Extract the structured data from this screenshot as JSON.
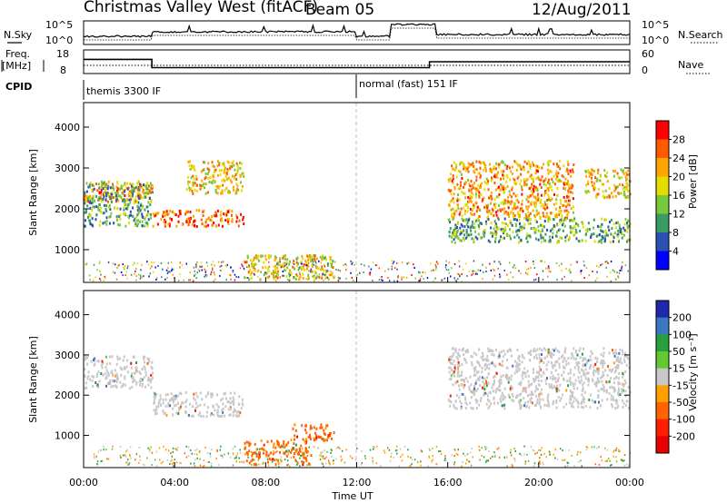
{
  "header": {
    "title": "Christmas Valley West (fitACF)",
    "beam": "Beam 05",
    "date": "12/Aug/2011"
  },
  "noise_panel": {
    "left_label": "N.Sky",
    "right_label": "N.Search",
    "left_ticks": [
      "10^5",
      "10^0"
    ],
    "right_ticks": [
      "10^5",
      "10^0"
    ]
  },
  "freq_panel": {
    "left_label_1": "Freq.",
    "left_label_2": "[MHz]",
    "right_label": "Nave",
    "left_ticks": [
      "18",
      "8"
    ],
    "right_ticks": [
      "60",
      "0"
    ]
  },
  "cpid": {
    "label": "CPID",
    "segments": [
      {
        "text": "themis 3300 IF",
        "start_hour": 0
      },
      {
        "text": "normal (fast) 151 IF",
        "start_hour": 12
      }
    ]
  },
  "power_panel": {
    "ylabel": "Slant Range [km]",
    "yticks": [
      "1000",
      "2000",
      "3000",
      "4000"
    ],
    "colorbar_label": "Power [dB]",
    "colorbar_ticks": [
      "4",
      "8",
      "12",
      "16",
      "20",
      "24",
      "28"
    ],
    "colors": [
      "#0000ff",
      "#2b50b4",
      "#3c9a64",
      "#78c83c",
      "#e6dc00",
      "#ffa500",
      "#ff5a00",
      "#ff0000"
    ]
  },
  "velocity_panel": {
    "ylabel": "Slant Range [km]",
    "yticks": [
      "1000",
      "2000",
      "3000",
      "4000"
    ],
    "colorbar_label": "Velocity [m s⁻¹]",
    "colorbar_ticks": [
      "200",
      "100",
      "50",
      "15",
      "-15",
      "-50",
      "-100",
      "-200"
    ],
    "colors": [
      "#1e28aa",
      "#3c78be",
      "#28a03c",
      "#64c832",
      "#c8c8c8",
      "#ffa000",
      "#ff6400",
      "#ff1e00",
      "#e60000"
    ]
  },
  "xaxis": {
    "label": "Time UT",
    "ticks": [
      "00:00",
      "04:00",
      "08:00",
      "12:00",
      "16:00",
      "20:00",
      "00:00"
    ]
  },
  "chart_data": {
    "type": "heatmap",
    "title": "Christmas Valley West (fitACF)",
    "subtitle": "Beam 05",
    "date": "12/Aug/2011",
    "xlabel": "Time UT",
    "ylabel": "Slant Range [km]",
    "xlim_hours": [
      0,
      24
    ],
    "ylim_km": [
      200,
      4600
    ],
    "frequency_mhz": [
      {
        "start_hour": 0,
        "end_hour": 3,
        "value": 14
      },
      {
        "start_hour": 3,
        "end_hour": 15.2,
        "value": 10.5
      },
      {
        "start_hour": 15.2,
        "end_hour": 24,
        "value": 13
      }
    ],
    "power_regions_db": [
      {
        "t_start": 0,
        "t_end": 3,
        "range_km": [
          2200,
          2700
        ],
        "power_db": 24
      },
      {
        "t_start": 0,
        "t_end": 3,
        "range_km": [
          1600,
          2700
        ],
        "power_db": 12
      },
      {
        "t_start": 3,
        "t_end": 7,
        "range_km": [
          1600,
          2000
        ],
        "power_db": 26
      },
      {
        "t_start": 4.5,
        "t_end": 7,
        "range_km": [
          2400,
          3200
        ],
        "power_db": 20
      },
      {
        "t_start": 7,
        "t_end": 11,
        "range_km": [
          300,
          900
        ],
        "power_db": 18
      },
      {
        "t_start": 16,
        "t_end": 21.5,
        "range_km": [
          1800,
          3200
        ],
        "power_db": 22
      },
      {
        "t_start": 16,
        "t_end": 24,
        "range_km": [
          1200,
          1800
        ],
        "power_db": 12
      },
      {
        "t_start": 22,
        "t_end": 24,
        "range_km": [
          2300,
          3000
        ],
        "power_db": 20
      }
    ],
    "velocity_regions_ms": [
      {
        "t_start": 0,
        "t_end": 3,
        "range_km": [
          2200,
          3000
        ],
        "velocity_ms": 0
      },
      {
        "t_start": 3,
        "t_end": 7,
        "range_km": [
          1500,
          2100
        ],
        "velocity_ms": 0
      },
      {
        "t_start": 7,
        "t_end": 10,
        "range_km": [
          300,
          900
        ],
        "velocity_ms": -60
      },
      {
        "t_start": 9,
        "t_end": 11,
        "range_km": [
          900,
          1300
        ],
        "velocity_ms": -60
      },
      {
        "t_start": 16,
        "t_end": 24,
        "range_km": [
          1700,
          3200
        ],
        "velocity_ms": 0
      }
    ],
    "colorbar_power_db": [
      4,
      8,
      12,
      16,
      20,
      24,
      28
    ],
    "colorbar_velocity_ms": [
      200,
      100,
      50,
      15,
      -15,
      -50,
      -100,
      -200
    ]
  }
}
